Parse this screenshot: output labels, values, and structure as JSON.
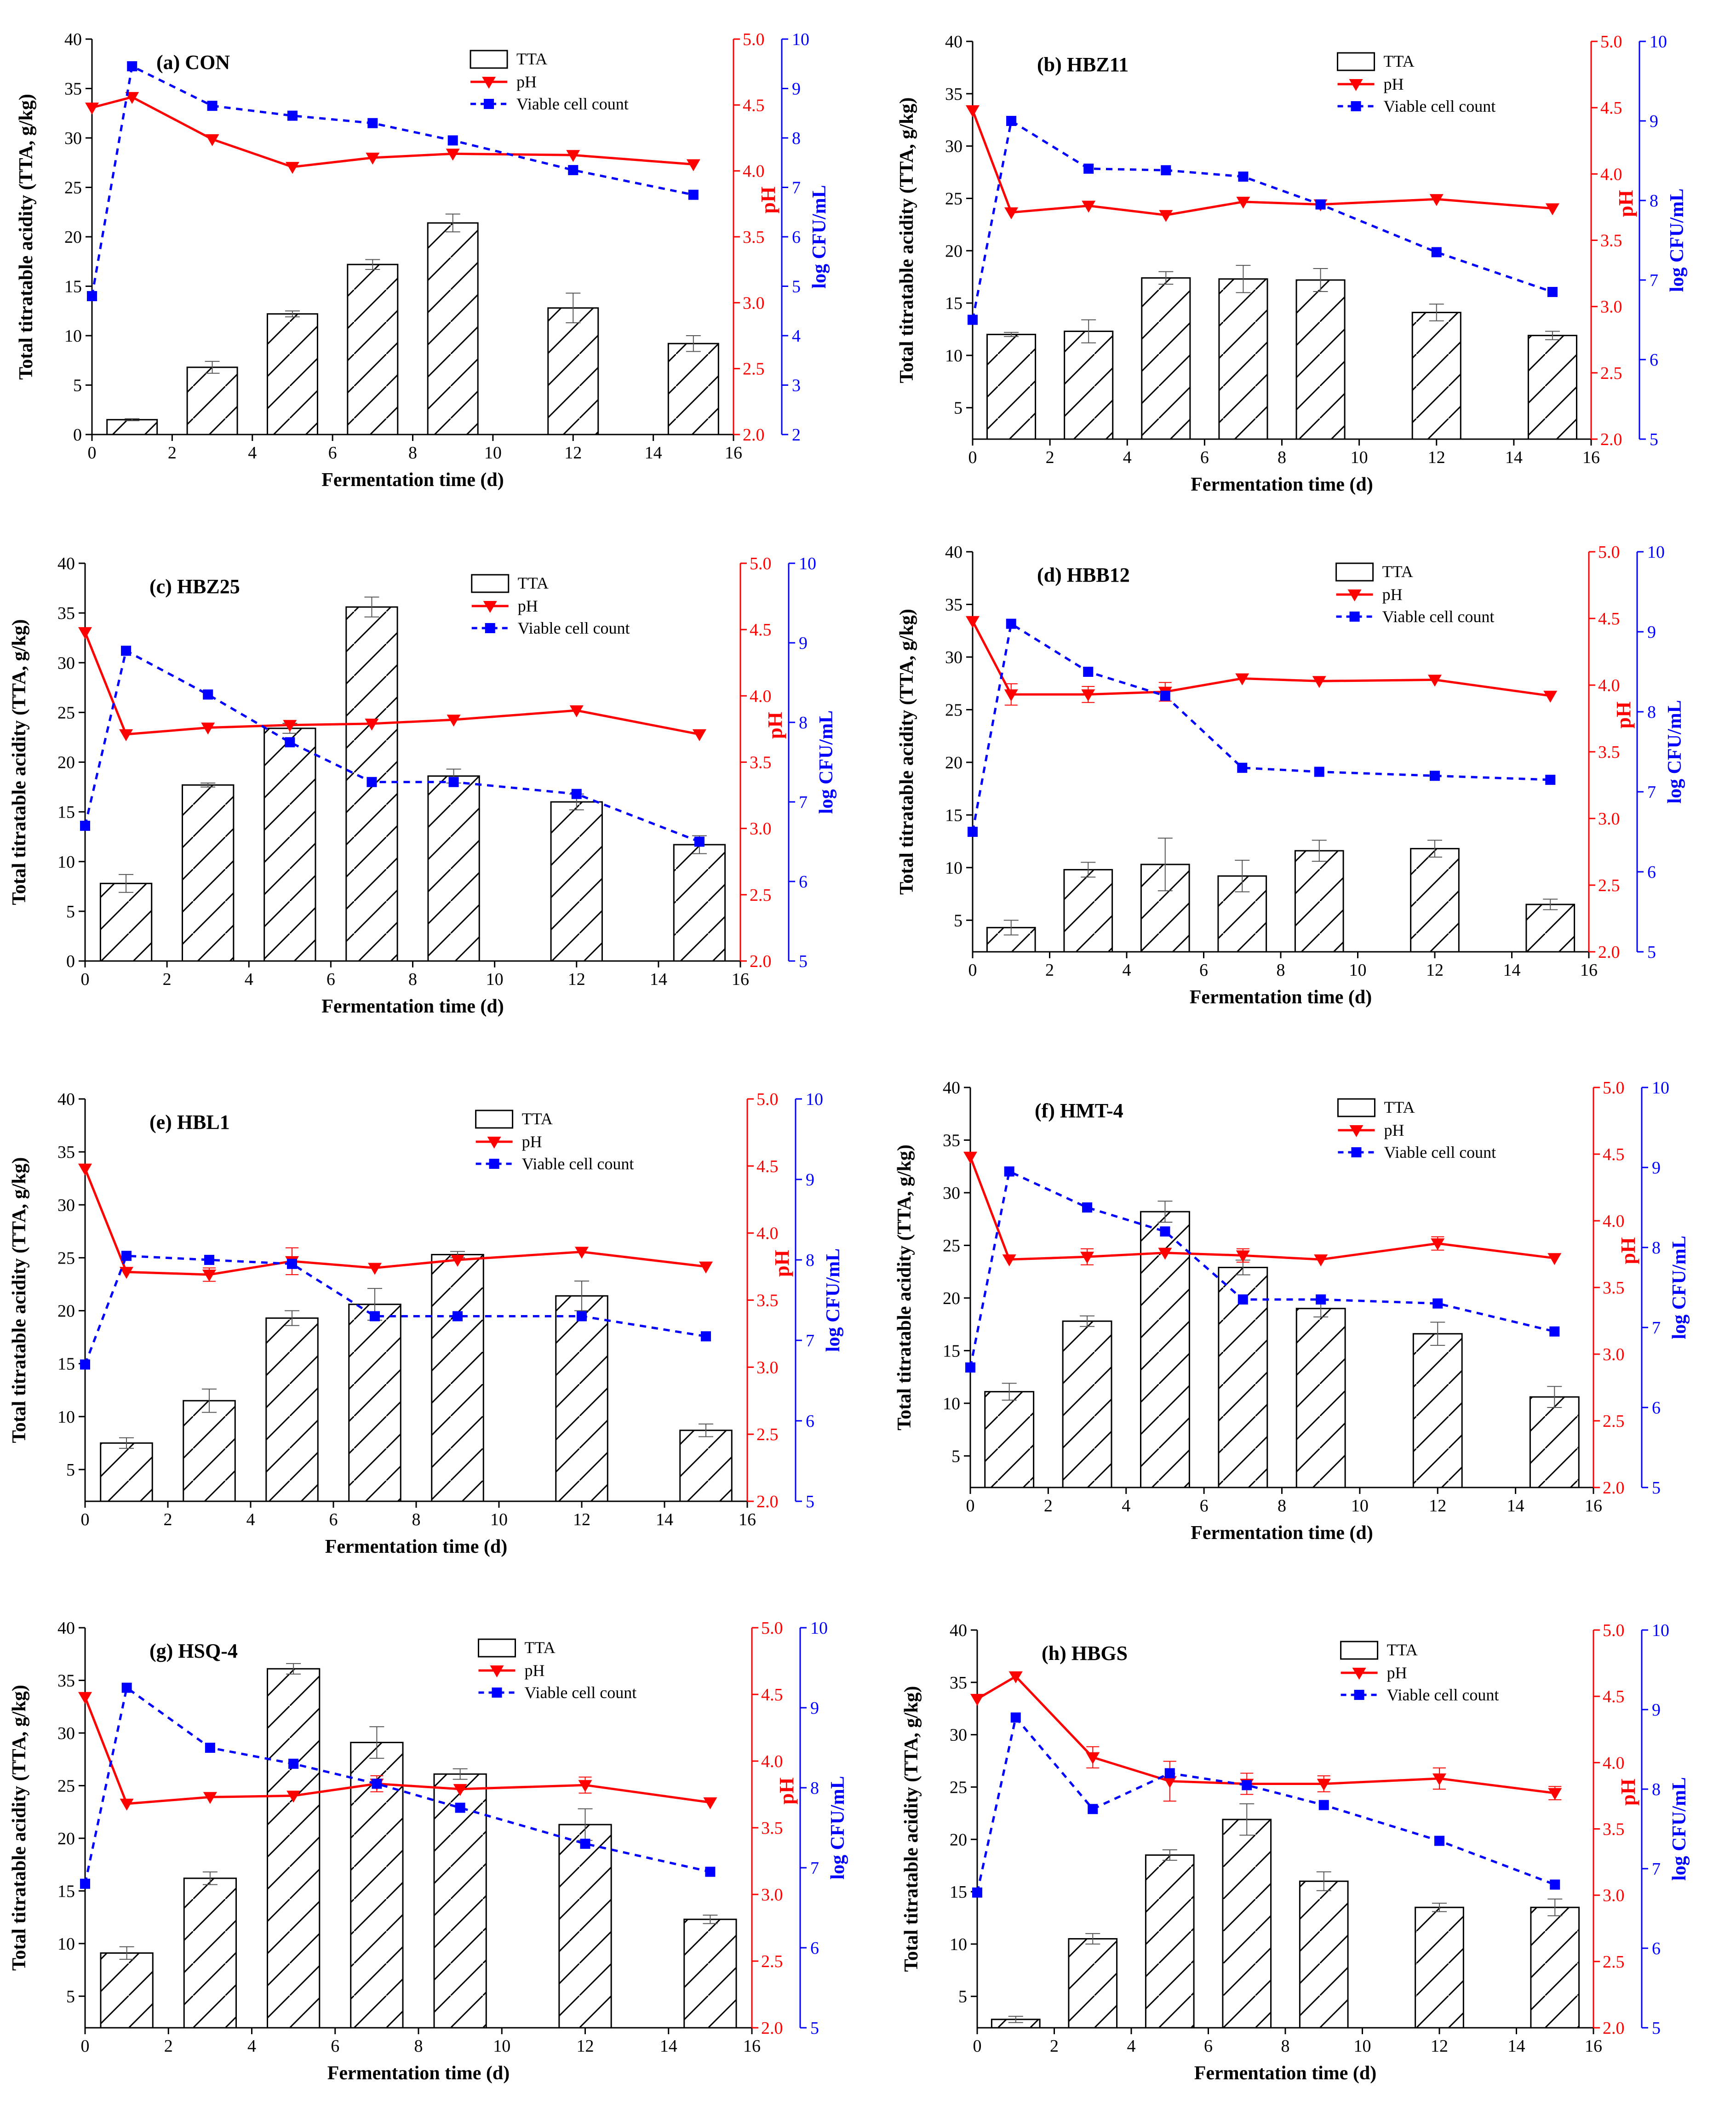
{
  "colors": {
    "tta": "#000000",
    "ph": "#ff0000",
    "cells": "#0000ff"
  },
  "legend": {
    "tta": "TTA",
    "ph": "pH",
    "cells": "Viable cell count"
  },
  "axes": {
    "xlabel": "Fermentation time (d)",
    "ylabel_left": "Total titratable acidity (TTA, g/kg)",
    "ylabel_right_ph": "pH",
    "ylabel_right_cells": "log CFU/mL",
    "x_ticks": [
      "0",
      "2",
      "4",
      "6",
      "8",
      "10",
      "12",
      "14",
      "16"
    ],
    "ph_ticks": [
      "2.0",
      "2.5",
      "3.0",
      "3.5",
      "4.0",
      "4.5",
      "5.0"
    ]
  },
  "chart_data": [
    {
      "type": "bar+line",
      "title": "(a) CON",
      "x": [
        0,
        1,
        3,
        5,
        7,
        9,
        12,
        15
      ],
      "xlim": [
        0,
        16
      ],
      "tta_ylim": [
        0,
        40
      ],
      "tta_ticks": [
        "0",
        "5",
        "10",
        "15",
        "20",
        "25",
        "30",
        "35",
        "40"
      ],
      "ph_ylim": [
        2.0,
        5.0
      ],
      "cells_ylim": [
        2,
        10
      ],
      "cells_ticks": [
        "2",
        "3",
        "4",
        "5",
        "6",
        "7",
        "8",
        "9",
        "10"
      ],
      "tta": {
        "x": [
          1,
          3,
          5,
          7,
          9,
          12,
          15
        ],
        "values": [
          1.5,
          6.8,
          12.2,
          17.2,
          21.4,
          12.8,
          9.2
        ],
        "errors": [
          0.1,
          0.6,
          0.3,
          0.5,
          0.9,
          1.5,
          0.8
        ]
      },
      "ph": {
        "x": [
          0,
          1,
          3,
          5,
          7,
          9,
          12,
          15
        ],
        "values": [
          4.48,
          4.56,
          4.24,
          4.03,
          4.1,
          4.13,
          4.12,
          4.05
        ],
        "errors": [
          0,
          0,
          0,
          0,
          0,
          0,
          0,
          0
        ]
      },
      "cells": {
        "x": [
          0,
          1,
          3,
          5,
          7,
          9,
          12,
          15
        ],
        "values": [
          4.8,
          9.45,
          8.65,
          8.45,
          8.3,
          7.95,
          7.35,
          6.85
        ]
      }
    },
    {
      "type": "bar+line",
      "title": "(b) HBZ11",
      "x": [
        0,
        1,
        3,
        5,
        7,
        9,
        12,
        15
      ],
      "xlim": [
        0,
        16
      ],
      "tta_ylim": [
        2,
        40
      ],
      "tta_ticks": [
        "5",
        "10",
        "15",
        "20",
        "25",
        "30",
        "35",
        "40"
      ],
      "ph_ylim": [
        2.0,
        5.0
      ],
      "cells_ylim": [
        5,
        10
      ],
      "cells_ticks": [
        "5",
        "6",
        "7",
        "8",
        "9",
        "10"
      ],
      "tta": {
        "x": [
          1,
          3,
          5,
          7,
          9,
          12,
          15
        ],
        "values": [
          12.0,
          12.3,
          17.4,
          17.3,
          17.2,
          14.1,
          11.9
        ],
        "errors": [
          0.2,
          1.1,
          0.6,
          1.3,
          1.1,
          0.8,
          0.4
        ]
      },
      "ph": {
        "x": [
          0,
          1,
          3,
          5,
          7,
          9,
          12,
          15
        ],
        "values": [
          4.48,
          3.71,
          3.76,
          3.69,
          3.79,
          3.77,
          3.81,
          3.74
        ],
        "errors": [
          0,
          0,
          0,
          0,
          0,
          0,
          0,
          0
        ]
      },
      "cells": {
        "x": [
          0,
          1,
          3,
          5,
          7,
          9,
          12,
          15
        ],
        "values": [
          6.5,
          9.0,
          8.4,
          8.38,
          8.3,
          7.95,
          7.35,
          6.85
        ]
      }
    },
    {
      "type": "bar+line",
      "title": "(c) HBZ25",
      "x": [
        0,
        1,
        3,
        5,
        7,
        9,
        12,
        15
      ],
      "xlim": [
        0,
        16
      ],
      "tta_ylim": [
        0,
        40
      ],
      "tta_ticks": [
        "0",
        "5",
        "10",
        "15",
        "20",
        "25",
        "30",
        "35",
        "40"
      ],
      "ph_ylim": [
        2.0,
        5.0
      ],
      "cells_ylim": [
        5,
        10
      ],
      "cells_ticks": [
        "5",
        "6",
        "7",
        "8",
        "9",
        "10"
      ],
      "tta": {
        "x": [
          1,
          3,
          5,
          7,
          9,
          12,
          15
        ],
        "values": [
          7.8,
          17.7,
          23.4,
          35.6,
          18.6,
          16.0,
          11.7
        ],
        "errors": [
          0.9,
          0.2,
          0.5,
          1.0,
          0.7,
          0.8,
          0.9
        ]
      },
      "ph": {
        "x": [
          0,
          1,
          3,
          5,
          7,
          9,
          12,
          15
        ],
        "values": [
          4.48,
          3.71,
          3.76,
          3.78,
          3.79,
          3.82,
          3.89,
          3.71
        ],
        "errors": [
          0,
          0,
          0,
          0,
          0,
          0,
          0,
          0
        ]
      },
      "cells": {
        "x": [
          0,
          1,
          3,
          5,
          7,
          9,
          12,
          15
        ],
        "values": [
          6.7,
          8.9,
          8.35,
          7.75,
          7.25,
          7.25,
          7.1,
          6.5
        ]
      }
    },
    {
      "type": "bar+line",
      "title": "(d) HBB12",
      "x": [
        0,
        1,
        3,
        5,
        7,
        9,
        12,
        15
      ],
      "xlim": [
        0,
        16
      ],
      "tta_ylim": [
        2,
        40
      ],
      "tta_ticks": [
        "5",
        "10",
        "15",
        "20",
        "25",
        "30",
        "35",
        "40"
      ],
      "ph_ylim": [
        2.0,
        5.0
      ],
      "cells_ylim": [
        5,
        10
      ],
      "cells_ticks": [
        "5",
        "6",
        "7",
        "8",
        "9",
        "10"
      ],
      "tta": {
        "x": [
          1,
          3,
          5,
          7,
          9,
          12,
          15
        ],
        "values": [
          4.3,
          9.8,
          10.3,
          9.2,
          11.6,
          11.8,
          6.5
        ],
        "errors": [
          0.7,
          0.7,
          2.5,
          1.5,
          1.0,
          0.8,
          0.5
        ]
      },
      "ph": {
        "x": [
          0,
          1,
          3,
          5,
          7,
          9,
          12,
          15
        ],
        "values": [
          4.48,
          3.93,
          3.93,
          3.95,
          4.05,
          4.03,
          4.04,
          3.92
        ],
        "errors": [
          0,
          0.08,
          0.06,
          0.07,
          0,
          0,
          0,
          0
        ]
      },
      "cells": {
        "x": [
          0,
          1,
          3,
          5,
          7,
          9,
          12,
          15
        ],
        "values": [
          6.5,
          9.1,
          8.5,
          8.2,
          7.3,
          7.25,
          7.2,
          7.15
        ]
      }
    },
    {
      "type": "bar+line",
      "title": "(e) HBL1",
      "x": [
        0,
        1,
        3,
        5,
        7,
        9,
        12,
        15
      ],
      "xlim": [
        0,
        16
      ],
      "tta_ylim": [
        2,
        40
      ],
      "tta_ticks": [
        "5",
        "10",
        "15",
        "20",
        "25",
        "30",
        "35",
        "40"
      ],
      "ph_ylim": [
        2.0,
        5.0
      ],
      "cells_ylim": [
        5,
        10
      ],
      "cells_ticks": [
        "5",
        "6",
        "7",
        "8",
        "9",
        "10"
      ],
      "tta": {
        "x": [
          1,
          3,
          5,
          7,
          9,
          12,
          15
        ],
        "values": [
          7.5,
          11.5,
          19.3,
          20.6,
          25.3,
          21.4,
          8.7
        ],
        "errors": [
          0.5,
          1.1,
          0.7,
          1.5,
          0.3,
          1.4,
          0.6
        ]
      },
      "ph": {
        "x": [
          0,
          1,
          3,
          5,
          7,
          9,
          12,
          15
        ],
        "values": [
          4.48,
          3.71,
          3.69,
          3.79,
          3.74,
          3.8,
          3.86,
          3.75
        ],
        "errors": [
          0,
          0,
          0.05,
          0.1,
          0,
          0,
          0,
          0
        ]
      },
      "cells": {
        "x": [
          0,
          1,
          3,
          5,
          7,
          9,
          12,
          15
        ],
        "values": [
          6.7,
          8.05,
          8.0,
          7.95,
          7.3,
          7.3,
          7.3,
          7.05
        ]
      }
    },
    {
      "type": "bar+line",
      "title": "(f) HMT-4",
      "x": [
        0,
        1,
        3,
        5,
        7,
        9,
        12,
        15
      ],
      "xlim": [
        0,
        16
      ],
      "tta_ylim": [
        2,
        40
      ],
      "tta_ticks": [
        "5",
        "10",
        "15",
        "20",
        "25",
        "30",
        "35",
        "40"
      ],
      "ph_ylim": [
        2.0,
        5.0
      ],
      "cells_ylim": [
        5,
        10
      ],
      "cells_ticks": [
        "5",
        "6",
        "7",
        "8",
        "9",
        "10"
      ],
      "tta": {
        "x": [
          1,
          3,
          5,
          7,
          9,
          12,
          15
        ],
        "values": [
          11.1,
          17.8,
          28.2,
          22.9,
          19.0,
          16.6,
          10.6
        ],
        "errors": [
          0.8,
          0.5,
          1.0,
          0.7,
          0.8,
          1.1,
          1.0
        ]
      },
      "ph": {
        "x": [
          0,
          1,
          3,
          5,
          7,
          9,
          12,
          15
        ],
        "values": [
          4.48,
          3.71,
          3.73,
          3.76,
          3.74,
          3.71,
          3.83,
          3.72
        ],
        "errors": [
          0,
          0,
          0.06,
          0,
          0.05,
          0,
          0.05,
          0
        ]
      },
      "cells": {
        "x": [
          0,
          1,
          3,
          5,
          7,
          9,
          12,
          15
        ],
        "values": [
          6.5,
          8.95,
          8.5,
          8.2,
          7.35,
          7.35,
          7.3,
          6.95
        ]
      }
    },
    {
      "type": "bar+line",
      "title": "(g) HSQ-4",
      "x": [
        0,
        1,
        3,
        5,
        7,
        9,
        12,
        15
      ],
      "xlim": [
        0,
        16
      ],
      "tta_ylim": [
        2,
        40
      ],
      "tta_ticks": [
        "5",
        "10",
        "15",
        "20",
        "25",
        "30",
        "35",
        "40"
      ],
      "ph_ylim": [
        2.0,
        5.0
      ],
      "cells_ylim": [
        5,
        10
      ],
      "cells_ticks": [
        "5",
        "6",
        "7",
        "8",
        "9",
        "10"
      ],
      "tta": {
        "x": [
          1,
          3,
          5,
          7,
          9,
          12,
          15
        ],
        "values": [
          9.1,
          16.2,
          36.1,
          29.1,
          26.1,
          21.3,
          12.3
        ],
        "errors": [
          0.6,
          0.6,
          0.5,
          1.5,
          0.5,
          1.5,
          0.4
        ]
      },
      "ph": {
        "x": [
          0,
          1,
          3,
          5,
          7,
          9,
          12,
          15
        ],
        "values": [
          4.48,
          3.68,
          3.73,
          3.74,
          3.83,
          3.79,
          3.82,
          3.69
        ],
        "errors": [
          0,
          0,
          0,
          0,
          0.06,
          0,
          0.06,
          0
        ]
      },
      "cells": {
        "x": [
          0,
          1,
          3,
          5,
          7,
          9,
          12,
          15
        ],
        "values": [
          6.8,
          9.25,
          8.5,
          8.3,
          8.05,
          7.75,
          7.3,
          6.95
        ]
      }
    },
    {
      "type": "bar+line",
      "title": "(h) HBGS",
      "x": [
        0,
        1,
        3,
        5,
        7,
        9,
        12,
        15
      ],
      "xlim": [
        0,
        16
      ],
      "tta_ylim": [
        2,
        40
      ],
      "tta_ticks": [
        "5",
        "10",
        "15",
        "20",
        "25",
        "30",
        "35",
        "40"
      ],
      "ph_ylim": [
        2.0,
        5.0
      ],
      "cells_ylim": [
        5,
        10
      ],
      "cells_ticks": [
        "5",
        "6",
        "7",
        "8",
        "9",
        "10"
      ],
      "tta": {
        "x": [
          1,
          3,
          5,
          7,
          9,
          12,
          15
        ],
        "values": [
          2.8,
          10.5,
          18.5,
          21.9,
          16.0,
          13.5,
          13.5
        ],
        "errors": [
          0.3,
          0.5,
          0.5,
          1.5,
          0.9,
          0.4,
          0.8
        ]
      },
      "ph": {
        "x": [
          0,
          1,
          3,
          5,
          7,
          9,
          12,
          15
        ],
        "values": [
          4.48,
          4.65,
          4.04,
          3.86,
          3.84,
          3.84,
          3.88,
          3.77
        ],
        "errors": [
          0,
          0,
          0.08,
          0.15,
          0.08,
          0.06,
          0.08,
          0.05
        ]
      },
      "cells": {
        "x": [
          0,
          1,
          3,
          5,
          7,
          9,
          12,
          15
        ],
        "values": [
          6.7,
          8.9,
          7.75,
          8.2,
          8.05,
          7.8,
          7.35,
          6.8
        ]
      }
    }
  ]
}
